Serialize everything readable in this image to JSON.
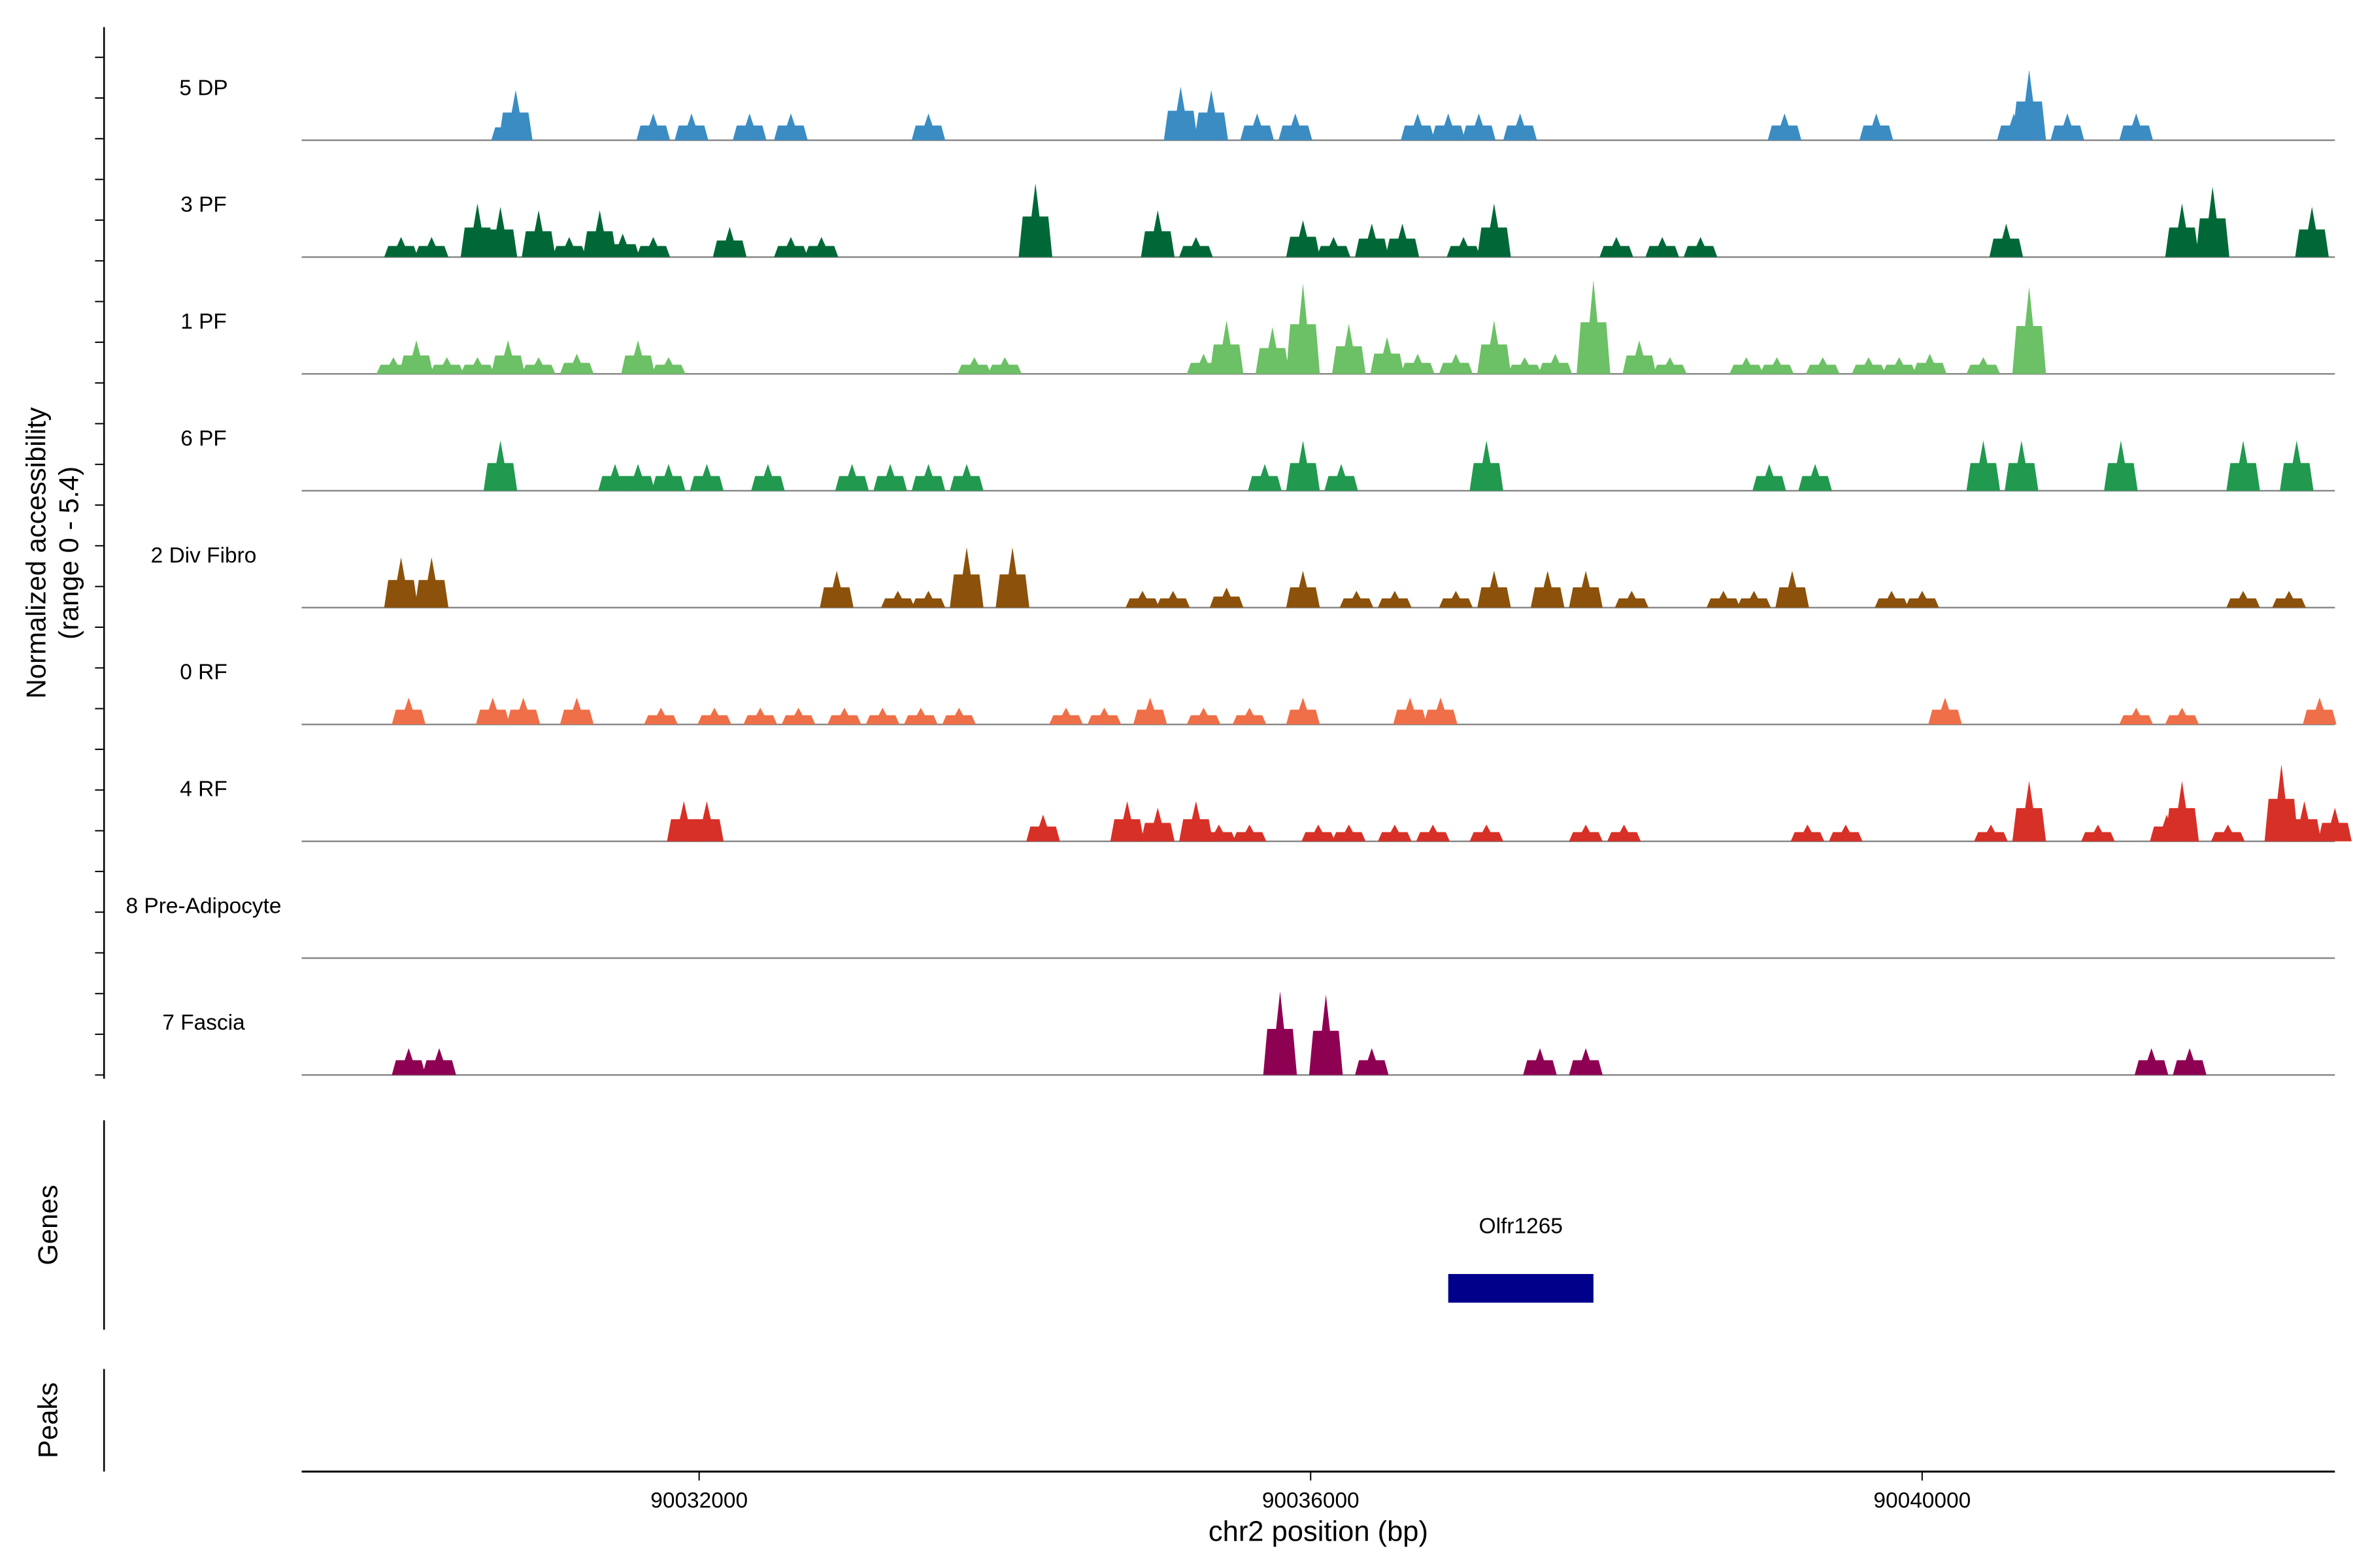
{
  "chart_data": {
    "type": "area",
    "title": "",
    "ylabel_line1": "Normalized accessibility",
    "ylabel_line2": "(range 0 - 5.4)",
    "yrange": [
      0,
      5.4
    ],
    "xlabel": "chr2 position (bp)",
    "xlim": [
      90029400,
      90042700
    ],
    "xticks": [
      90032000,
      90036000,
      90040000
    ],
    "xtick_labels": [
      "90032000",
      "90036000",
      "90040000"
    ],
    "genes_label": "Genes",
    "peaks_label": "Peaks",
    "genes": [
      {
        "name": "Olfr1265",
        "start": 90036900,
        "end": 90037850,
        "color": "#00008b"
      }
    ],
    "tracks": [
      {
        "name": "5 DP",
        "color": "#3a8cc3",
        "peaks": [
          [
            90030750,
            0.7
          ],
          [
            90030800,
            1.5
          ],
          [
            90031700,
            0.8
          ],
          [
            90031950,
            0.8
          ],
          [
            90032330,
            0.8
          ],
          [
            90032600,
            0.8
          ],
          [
            90033500,
            0.8
          ],
          [
            90035150,
            1.6
          ],
          [
            90035350,
            1.5
          ],
          [
            90035650,
            0.8
          ],
          [
            90035900,
            0.8
          ],
          [
            90036700,
            0.8
          ],
          [
            90036900,
            0.8
          ],
          [
            90037100,
            0.8
          ],
          [
            90037370,
            0.8
          ],
          [
            90039100,
            0.8
          ],
          [
            90039700,
            0.8
          ],
          [
            90040600,
            0.8
          ],
          [
            90040700,
            2.1
          ],
          [
            90040950,
            0.8
          ],
          [
            90041400,
            0.8
          ]
        ]
      },
      {
        "name": "3 PF",
        "color": "#006837",
        "peaks": [
          [
            90030050,
            0.6
          ],
          [
            90030250,
            0.6
          ],
          [
            90030550,
            1.6
          ],
          [
            90030700,
            1.5
          ],
          [
            90030950,
            1.4
          ],
          [
            90031150,
            0.6
          ],
          [
            90031350,
            1.4
          ],
          [
            90031500,
            0.7
          ],
          [
            90031700,
            0.6
          ],
          [
            90032200,
            0.9
          ],
          [
            90032600,
            0.6
          ],
          [
            90032800,
            0.6
          ],
          [
            90034200,
            2.2
          ],
          [
            90035000,
            1.4
          ],
          [
            90035250,
            0.6
          ],
          [
            90035950,
            1.1
          ],
          [
            90036150,
            0.6
          ],
          [
            90036400,
            1.0
          ],
          [
            90036600,
            1.0
          ],
          [
            90037000,
            0.6
          ],
          [
            90037200,
            1.6
          ],
          [
            90038000,
            0.6
          ],
          [
            90038300,
            0.6
          ],
          [
            90038550,
            0.6
          ],
          [
            90040550,
            1.0
          ],
          [
            90041700,
            1.6
          ],
          [
            90041900,
            2.1
          ],
          [
            90042550,
            1.5
          ]
        ]
      },
      {
        "name": "1 PF",
        "color": "#6cc065",
        "peaks": [
          [
            90030000,
            0.5
          ],
          [
            90030150,
            1.0
          ],
          [
            90030350,
            0.5
          ],
          [
            90030550,
            0.5
          ],
          [
            90030750,
            1.0
          ],
          [
            90030950,
            0.5
          ],
          [
            90031200,
            0.6
          ],
          [
            90031600,
            1.0
          ],
          [
            90031800,
            0.5
          ],
          [
            90033800,
            0.5
          ],
          [
            90034000,
            0.5
          ],
          [
            90035300,
            0.6
          ],
          [
            90035450,
            1.6
          ],
          [
            90035950,
            2.7
          ],
          [
            90035750,
            1.4
          ],
          [
            90036250,
            1.5
          ],
          [
            90036500,
            1.1
          ],
          [
            90036700,
            0.6
          ],
          [
            90036950,
            0.6
          ],
          [
            90037200,
            1.6
          ],
          [
            90037400,
            0.5
          ],
          [
            90037600,
            0.6
          ],
          [
            90037850,
            2.8
          ],
          [
            90038150,
            1.0
          ],
          [
            90038350,
            0.5
          ],
          [
            90038850,
            0.5
          ],
          [
            90039050,
            0.5
          ],
          [
            90039350,
            0.5
          ],
          [
            90039650,
            0.5
          ],
          [
            90039850,
            0.5
          ],
          [
            90040050,
            0.6
          ],
          [
            90040400,
            0.5
          ],
          [
            90040700,
            2.6
          ]
        ]
      },
      {
        "name": "6 PF",
        "color": "#21994f",
        "peaks": [
          [
            90030700,
            1.5
          ],
          [
            90031450,
            0.8
          ],
          [
            90031600,
            0.8
          ],
          [
            90031800,
            0.8
          ],
          [
            90032050,
            0.8
          ],
          [
            90032450,
            0.8
          ],
          [
            90033000,
            0.8
          ],
          [
            90033250,
            0.8
          ],
          [
            90033500,
            0.8
          ],
          [
            90033750,
            0.8
          ],
          [
            90035700,
            0.8
          ],
          [
            90035950,
            1.5
          ],
          [
            90036200,
            0.8
          ],
          [
            90037150,
            1.5
          ],
          [
            90039000,
            0.8
          ],
          [
            90039300,
            0.8
          ],
          [
            90040400,
            1.5
          ],
          [
            90040650,
            1.5
          ],
          [
            90041300,
            1.5
          ],
          [
            90042100,
            1.5
          ],
          [
            90042450,
            1.5
          ]
        ]
      },
      {
        "name": "2 Div Fibro",
        "color": "#8c510a",
        "peaks": [
          [
            90030050,
            1.5
          ],
          [
            90030250,
            1.5
          ],
          [
            90032900,
            1.1
          ],
          [
            90033300,
            0.5
          ],
          [
            90033500,
            0.5
          ],
          [
            90033750,
            1.8
          ],
          [
            90034050,
            1.8
          ],
          [
            90034900,
            0.5
          ],
          [
            90035100,
            0.5
          ],
          [
            90035450,
            0.6
          ],
          [
            90035950,
            1.1
          ],
          [
            90036300,
            0.5
          ],
          [
            90036550,
            0.5
          ],
          [
            90036950,
            0.5
          ],
          [
            90037200,
            1.1
          ],
          [
            90037550,
            1.1
          ],
          [
            90037800,
            1.1
          ],
          [
            90038100,
            0.5
          ],
          [
            90038700,
            0.5
          ],
          [
            90038900,
            0.5
          ],
          [
            90039150,
            1.1
          ],
          [
            90039800,
            0.5
          ],
          [
            90040000,
            0.5
          ],
          [
            90042100,
            0.5
          ],
          [
            90042400,
            0.5
          ]
        ]
      },
      {
        "name": "0 RF",
        "color": "#ef6f48",
        "peaks": [
          [
            90030100,
            0.8
          ],
          [
            90030650,
            0.8
          ],
          [
            90030850,
            0.8
          ],
          [
            90031200,
            0.8
          ],
          [
            90031750,
            0.5
          ],
          [
            90032100,
            0.5
          ],
          [
            90032400,
            0.5
          ],
          [
            90032650,
            0.5
          ],
          [
            90032950,
            0.5
          ],
          [
            90033200,
            0.5
          ],
          [
            90033450,
            0.5
          ],
          [
            90033700,
            0.5
          ],
          [
            90034400,
            0.5
          ],
          [
            90034650,
            0.5
          ],
          [
            90034950,
            0.8
          ],
          [
            90035300,
            0.5
          ],
          [
            90035600,
            0.5
          ],
          [
            90035950,
            0.8
          ],
          [
            90036650,
            0.8
          ],
          [
            90036850,
            0.8
          ],
          [
            90040150,
            0.8
          ],
          [
            90041400,
            0.5
          ],
          [
            90041700,
            0.5
          ],
          [
            90042600,
            0.8
          ]
        ]
      },
      {
        "name": "4 RF",
        "color": "#d73027",
        "peaks": [
          [
            90031900,
            1.2
          ],
          [
            90032050,
            1.2
          ],
          [
            90034250,
            0.8
          ],
          [
            90034800,
            1.2
          ],
          [
            90035000,
            1.0
          ],
          [
            90035250,
            1.2
          ],
          [
            90035400,
            0.5
          ],
          [
            90035600,
            0.5
          ],
          [
            90036050,
            0.5
          ],
          [
            90036250,
            0.5
          ],
          [
            90036550,
            0.5
          ],
          [
            90036800,
            0.5
          ],
          [
            90037150,
            0.5
          ],
          [
            90037800,
            0.5
          ],
          [
            90038050,
            0.5
          ],
          [
            90039250,
            0.5
          ],
          [
            90039500,
            0.5
          ],
          [
            90040450,
            0.5
          ],
          [
            90040700,
            1.8
          ],
          [
            90041150,
            0.5
          ],
          [
            90041600,
            0.8
          ],
          [
            90041700,
            1.8
          ],
          [
            90042000,
            0.5
          ],
          [
            90042350,
            2.3
          ],
          [
            90042500,
            1.2
          ],
          [
            90042700,
            1.0
          ]
        ]
      },
      {
        "name": "8 Pre-Adipocyte",
        "color": "#7b3294",
        "peaks": []
      },
      {
        "name": "7 Fascia",
        "color": "#8e0152",
        "peaks": [
          [
            90030100,
            0.8
          ],
          [
            90030300,
            0.8
          ],
          [
            90035800,
            2.5
          ],
          [
            90036100,
            2.4
          ],
          [
            90036400,
            0.8
          ],
          [
            90037500,
            0.8
          ],
          [
            90037800,
            0.8
          ],
          [
            90041500,
            0.8
          ],
          [
            90041750,
            0.8
          ]
        ]
      }
    ]
  }
}
